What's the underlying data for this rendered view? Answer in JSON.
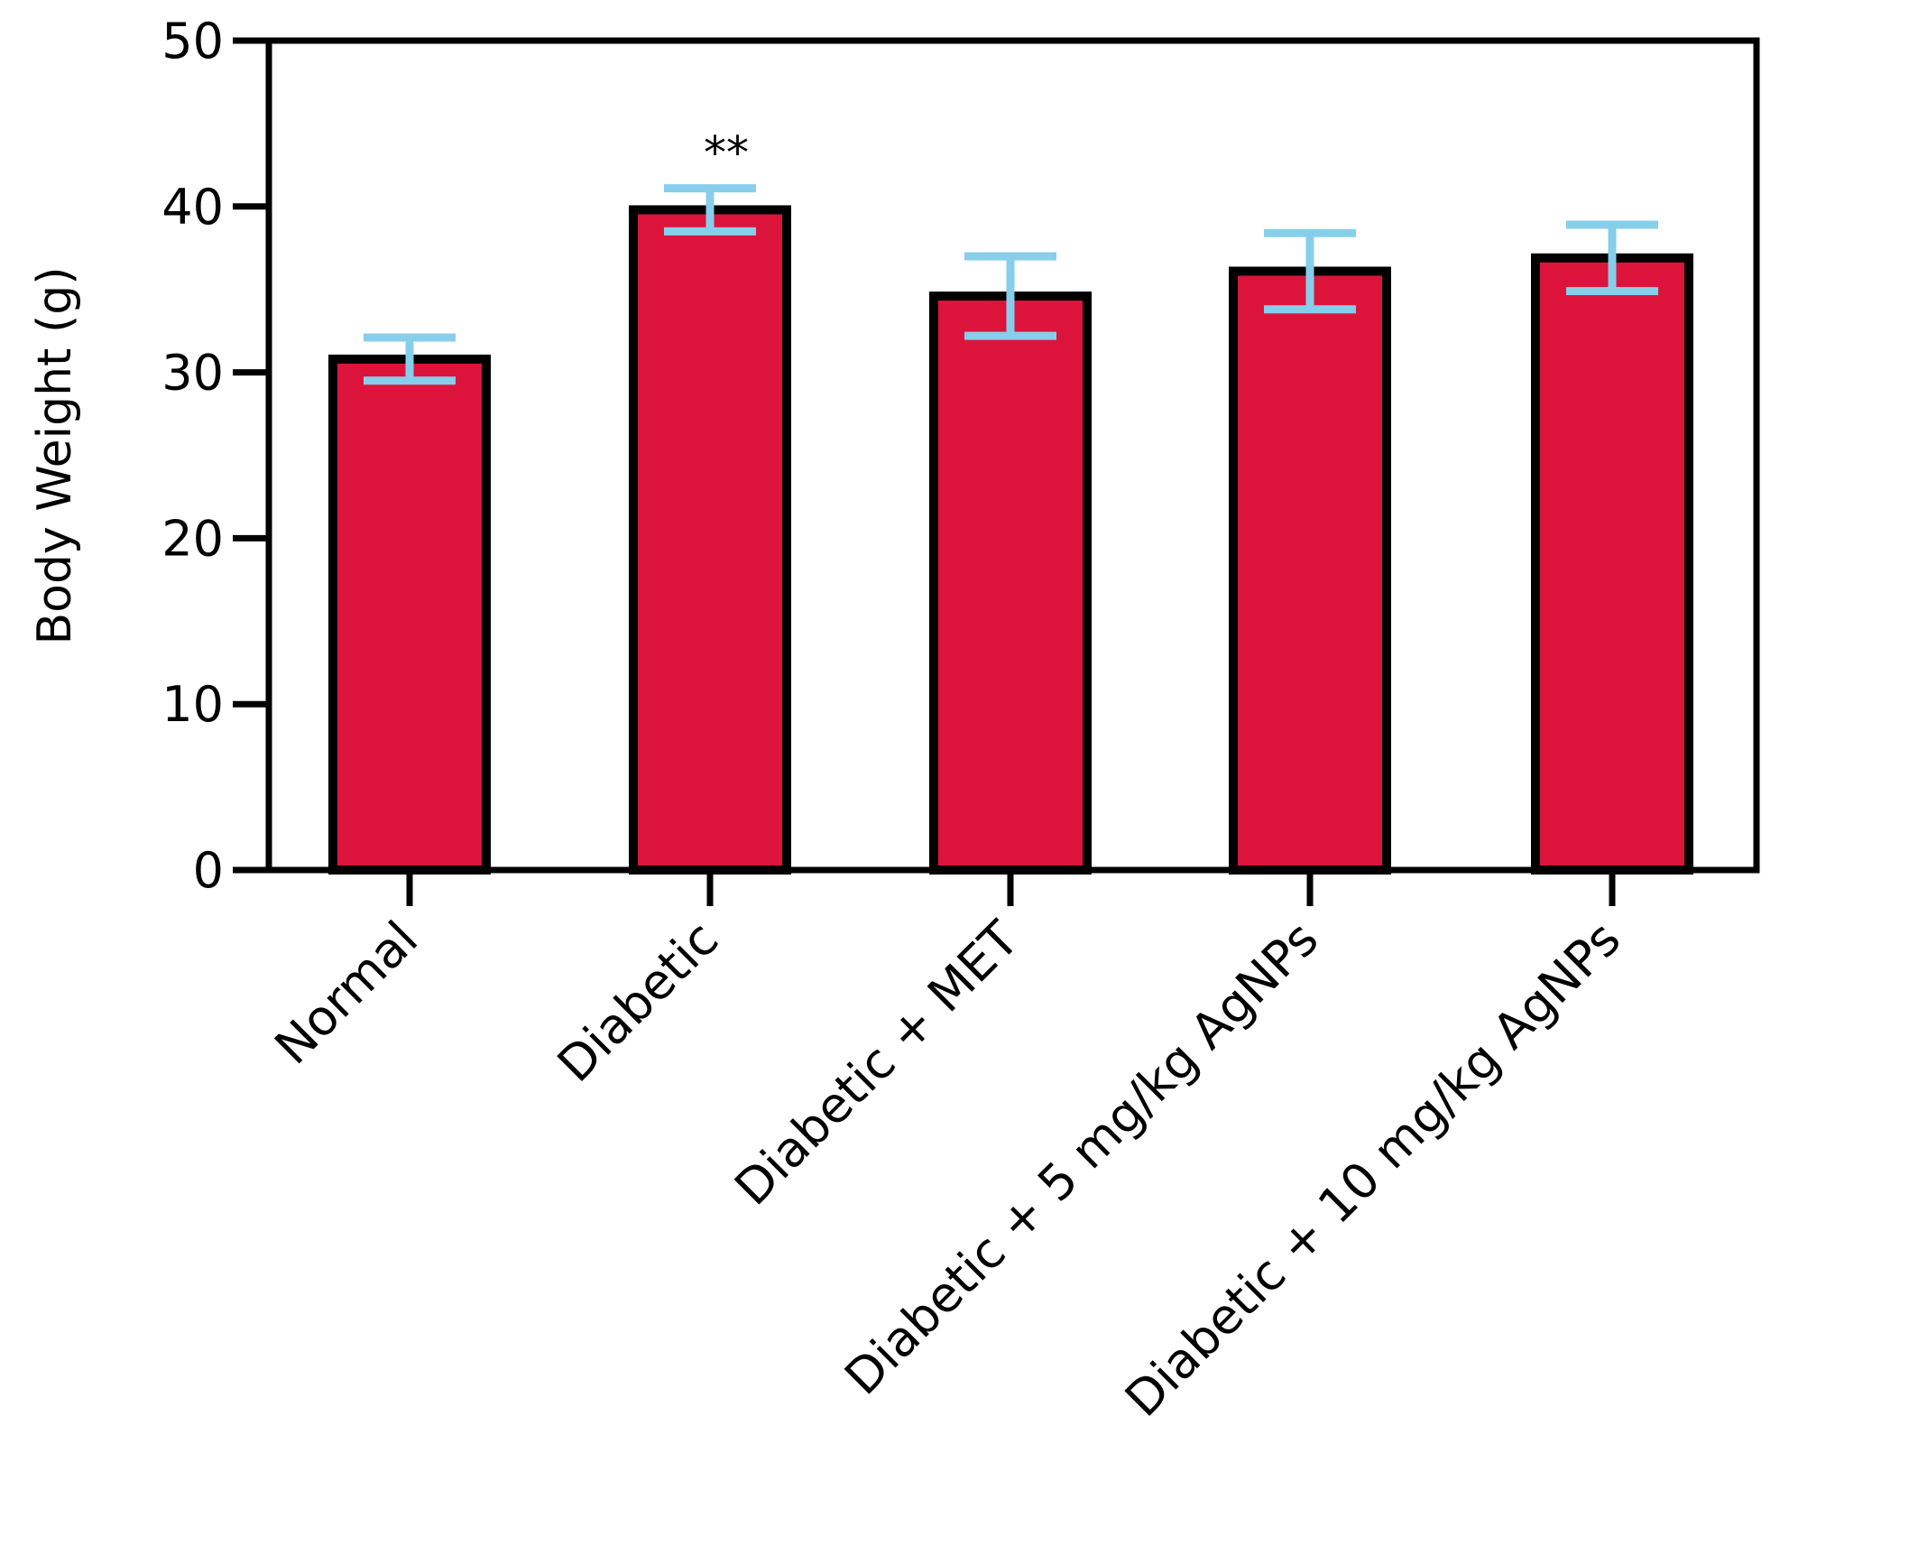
{
  "chart_data": {
    "type": "bar",
    "title": "",
    "xlabel": "",
    "ylabel": "Body Weight (g)",
    "ylim": [
      0,
      50
    ],
    "yticks": [
      0,
      10,
      20,
      30,
      40,
      50
    ],
    "grid": false,
    "categories": [
      "Normal",
      "Diabetic",
      "Diabetic + MET",
      "Diabetic + 5 mg/kg AgNPs",
      "Diabetic + 10 mg/kg AgNPs"
    ],
    "values": [
      30.8,
      39.8,
      34.6,
      36.1,
      36.9
    ],
    "errors": [
      1.3,
      1.3,
      2.4,
      2.3,
      2.0
    ],
    "annotations": [
      {
        "category": "Diabetic",
        "text": "**"
      }
    ],
    "colors": {
      "bar": "#DC143C",
      "edge": "#000000",
      "error": "#87CEEB"
    }
  }
}
